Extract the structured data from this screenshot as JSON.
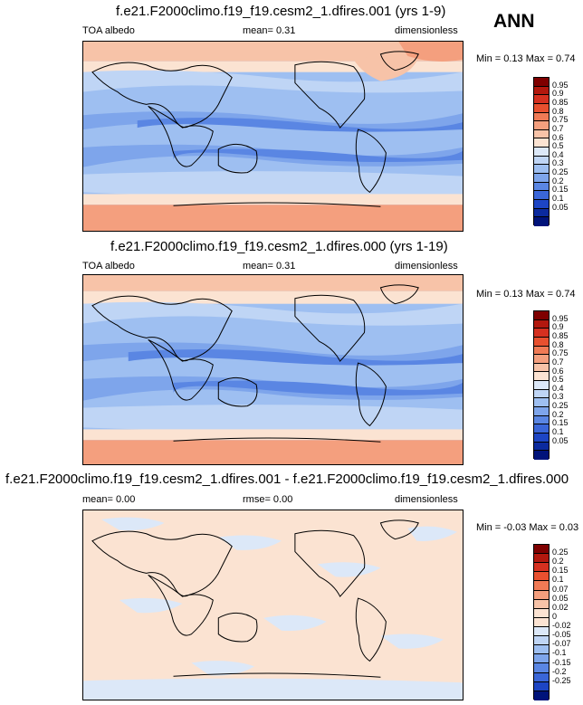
{
  "season": "ANN",
  "panels": [
    {
      "title": "f.e21.F2000climo.f19_f19.cesm2_1.dfires.001 (yrs 1-9)",
      "left_label": "TOA albedo",
      "mid_label": "mean=  0.31",
      "right_label": "dimensionless",
      "minmax": "Min =  0.13 Max =  0.74",
      "levels": [
        "0.95",
        "0.9",
        "0.85",
        "0.8",
        "0.75",
        "0.7",
        "0.6",
        "0.5",
        "0.4",
        "0.3",
        "0.25",
        "0.2",
        "0.15",
        "0.1",
        "0.05"
      ],
      "colors": [
        "#7f0000",
        "#b2180e",
        "#d53020",
        "#e8502f",
        "#f07a55",
        "#f49f7e",
        "#f7c3a8",
        "#fbe3d2",
        "#dce8f8",
        "#bfd5f5",
        "#9ebff1",
        "#7ea5eb",
        "#5a86e3",
        "#3a66d8",
        "#1d45c4",
        "#0b2a9e",
        "#00137a"
      ]
    },
    {
      "title": "f.e21.F2000climo.f19_f19.cesm2_1.dfires.000 (yrs 1-19)",
      "left_label": "TOA albedo",
      "mid_label": "mean=  0.31",
      "right_label": "dimensionless",
      "minmax": "Min =  0.13 Max =  0.74",
      "levels": [
        "0.95",
        "0.9",
        "0.85",
        "0.8",
        "0.75",
        "0.7",
        "0.6",
        "0.5",
        "0.4",
        "0.3",
        "0.25",
        "0.2",
        "0.15",
        "0.1",
        "0.05"
      ],
      "colors": [
        "#7f0000",
        "#b2180e",
        "#d53020",
        "#e8502f",
        "#f07a55",
        "#f49f7e",
        "#f7c3a8",
        "#fbe3d2",
        "#dce8f8",
        "#bfd5f5",
        "#9ebff1",
        "#7ea5eb",
        "#5a86e3",
        "#3a66d8",
        "#1d45c4",
        "#0b2a9e",
        "#00137a"
      ]
    },
    {
      "title": "f.e21.F2000climo.f19_f19.cesm2_1.dfires.001 - f.e21.F2000climo.f19_f19.cesm2_1.dfires.000",
      "left_label": "mean=  0.00",
      "mid_label": "rmse=  0.00",
      "right_label": "dimensionless",
      "minmax": "Min = -0.03 Max =  0.03",
      "levels": [
        "0.25",
        "0.2",
        "0.15",
        "0.1",
        "0.07",
        "0.05",
        "0.02",
        "0",
        "-0.02",
        "-0.05",
        "-0.07",
        "-0.1",
        "-0.15",
        "-0.2",
        "-0.25"
      ],
      "colors": [
        "#7f0000",
        "#b2180e",
        "#d53020",
        "#e8502f",
        "#f07a55",
        "#f49f7e",
        "#f7c3a8",
        "#fbe3d2",
        "#fbe3d2",
        "#dce8f8",
        "#bfd5f5",
        "#9ebff1",
        "#7ea5eb",
        "#5a86e3",
        "#3a66d8",
        "#1d45c4",
        "#00137a"
      ]
    }
  ]
}
